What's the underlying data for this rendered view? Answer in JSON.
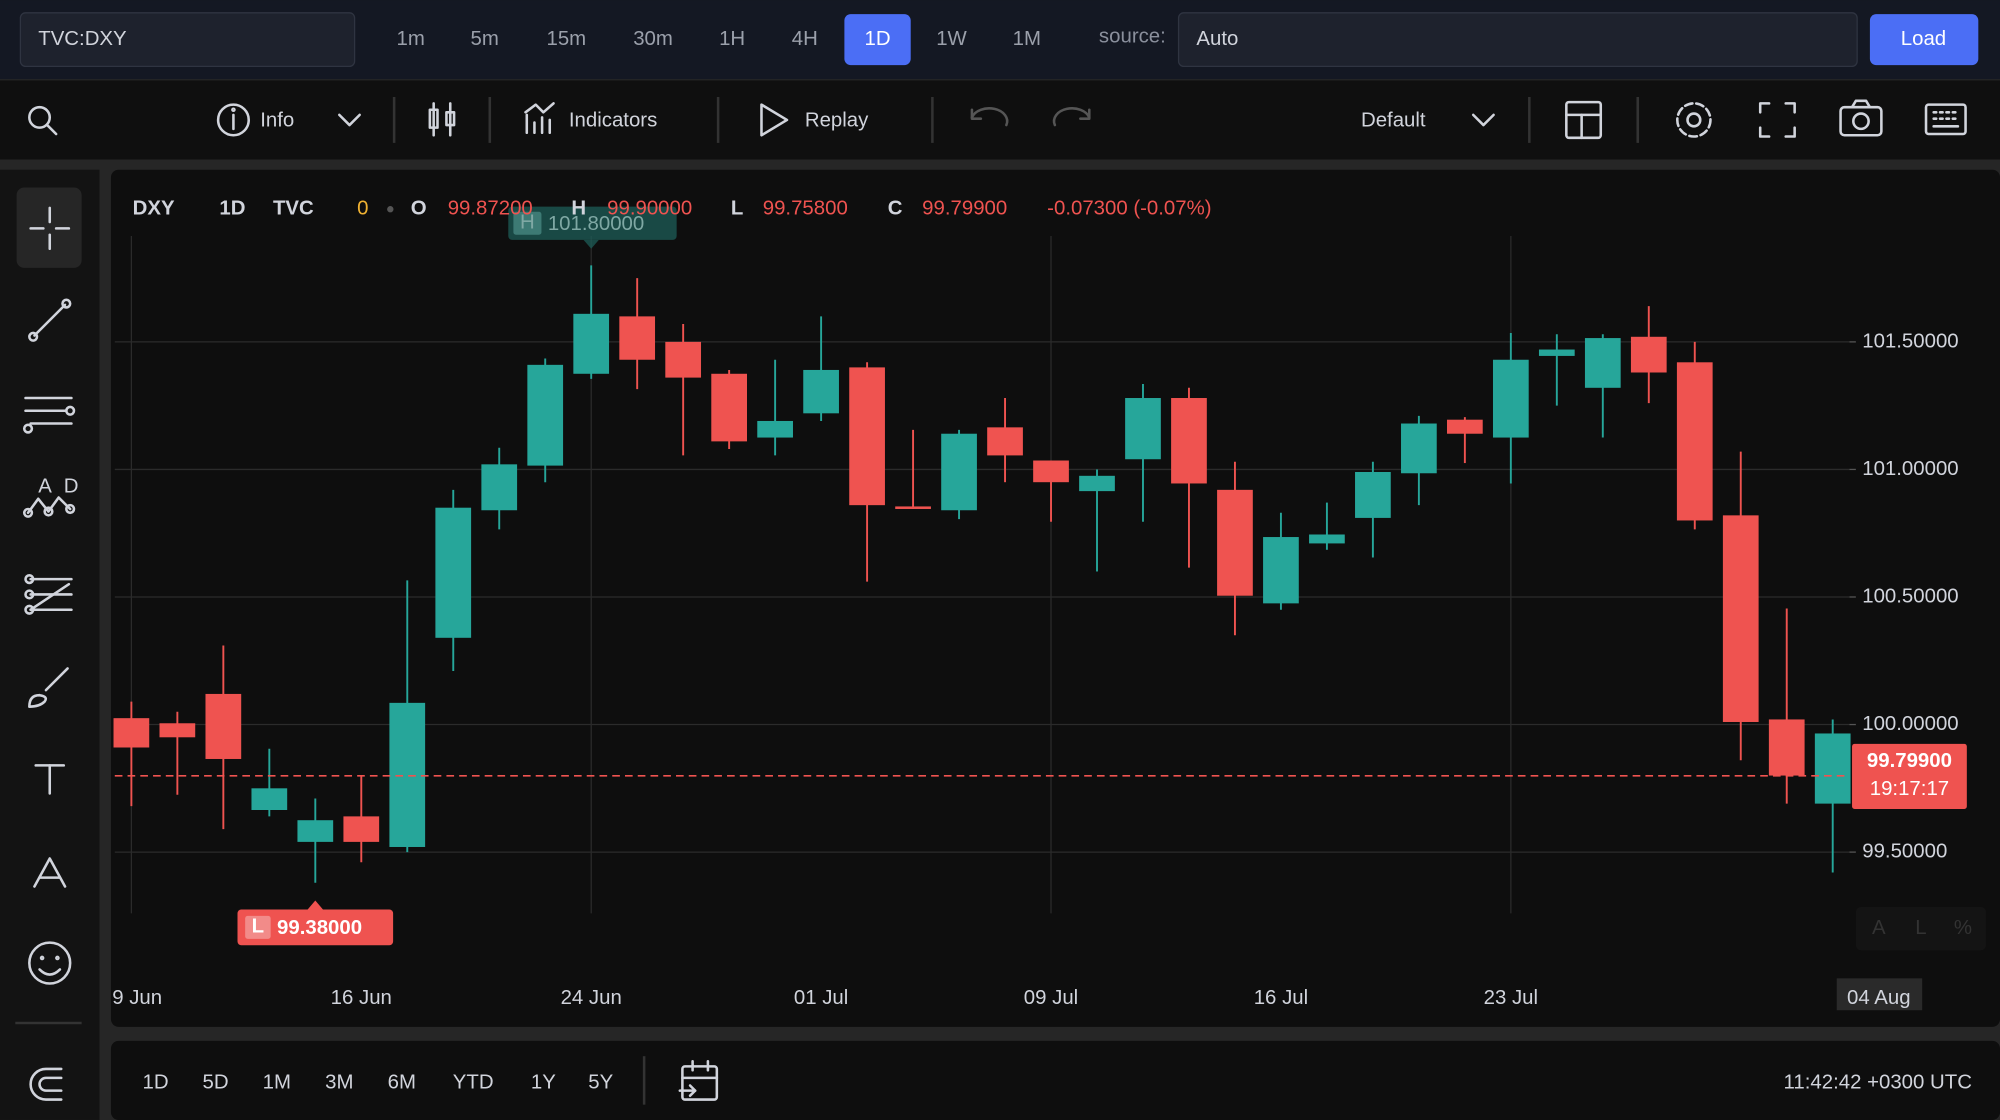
{
  "symbol_input": "TVC:DXY",
  "intervals": [
    "1m",
    "5m",
    "15m",
    "30m",
    "1H",
    "4H",
    "1D",
    "1W",
    "1M"
  ],
  "active_interval": 6,
  "source_label": "source:",
  "source_value": "Auto",
  "load_button": "Load",
  "toolbar": {
    "info": "Info",
    "indicators": "Indicators",
    "replay": "Replay",
    "layout": "Default"
  },
  "chart_data": {
    "type": "candlestick",
    "legend": {
      "symbol": "DXY",
      "interval": "1D",
      "exchange": "TVC",
      "status": "0",
      "o_label": "O",
      "o_value": "99.87200",
      "h_label": "H",
      "h_value": "99.90000",
      "l_label": "L",
      "l_value": "99.75800",
      "c_label": "C",
      "c_value": "99.79900",
      "change": "-0.07300 (-0.07%)"
    },
    "categories": [
      "9 Jun",
      null,
      null,
      null,
      null,
      "16 Jun",
      null,
      null,
      null,
      null,
      "24 Jun",
      null,
      null,
      null,
      null,
      "01 Jul",
      null,
      null,
      null,
      null,
      "09 Jul",
      null,
      null,
      null,
      null,
      "16 Jul",
      null,
      null,
      null,
      null,
      "23 Jul",
      null,
      null,
      null,
      null,
      null,
      null,
      null
    ],
    "open": [
      100.025,
      100.005,
      100.12,
      99.665,
      99.54,
      99.64,
      99.52,
      100.34,
      100.84,
      101.015,
      101.375,
      101.6,
      101.5,
      101.375,
      101.125,
      101.22,
      101.4,
      100.855,
      100.84,
      101.165,
      101.035,
      100.915,
      101.04,
      101.28,
      100.92,
      100.475,
      100.71,
      100.81,
      100.985,
      101.195,
      101.125,
      101.445,
      101.32,
      101.52,
      101.42,
      100.82,
      100.02,
      99.69
    ],
    "high": [
      100.09,
      100.05,
      100.31,
      99.905,
      99.71,
      99.8,
      100.565,
      100.92,
      101.085,
      101.435,
      101.8,
      101.75,
      101.57,
      101.39,
      101.43,
      101.6,
      101.42,
      101.155,
      101.155,
      101.28,
      101.035,
      101.0,
      101.335,
      101.32,
      101.03,
      100.83,
      100.87,
      101.03,
      101.21,
      101.205,
      101.535,
      101.53,
      101.53,
      101.64,
      101.5,
      101.07,
      100.455,
      100.02
    ],
    "low": [
      99.68,
      99.725,
      99.59,
      99.64,
      99.38,
      99.46,
      99.5,
      100.21,
      100.765,
      100.95,
      101.355,
      101.315,
      101.055,
      101.08,
      101.055,
      101.19,
      100.56,
      100.845,
      100.805,
      100.95,
      100.795,
      100.6,
      100.795,
      100.615,
      100.35,
      100.45,
      100.685,
      100.655,
      100.86,
      101.025,
      100.945,
      101.25,
      101.125,
      101.26,
      100.765,
      99.86,
      99.69,
      99.42
    ],
    "close": [
      99.91,
      99.95,
      99.865,
      99.75,
      99.625,
      99.54,
      100.085,
      100.85,
      101.02,
      101.41,
      101.61,
      101.43,
      101.36,
      101.11,
      101.19,
      101.39,
      100.86,
      100.845,
      101.14,
      101.055,
      100.95,
      100.975,
      101.28,
      100.945,
      100.505,
      100.735,
      100.745,
      100.99,
      101.18,
      101.14,
      101.43,
      101.47,
      101.515,
      101.38,
      100.8,
      100.01,
      99.8,
      99.965
    ],
    "up_color": "#26a69a",
    "down_color": "#ef5350",
    "ylim": [
      99.04,
      102.14
    ],
    "yticks": [
      {
        "value": 99.5,
        "label": "99.50000"
      },
      {
        "value": 100,
        "label": "100.00000"
      },
      {
        "value": 100.5,
        "label": "100.50000"
      },
      {
        "value": 101,
        "label": "101.00000"
      },
      {
        "value": 101.5,
        "label": "101.50000"
      }
    ],
    "grid": true,
    "high_marker": {
      "tag": "H",
      "value": 101.8,
      "label": "101.80000"
    },
    "low_marker": {
      "tag": "L",
      "value": 99.38,
      "label": "99.38000"
    },
    "current_price": {
      "value": 99.799,
      "label": "99.79900",
      "countdown": "19:17:17"
    },
    "crosshair_date": "04 Aug",
    "scale_buttons": [
      "A",
      "L",
      "%"
    ]
  },
  "range_buttons": [
    "1D",
    "5D",
    "1M",
    "3M",
    "6M",
    "YTD",
    "1Y",
    "5Y"
  ],
  "clock": "11:42:42 +0300 UTC"
}
